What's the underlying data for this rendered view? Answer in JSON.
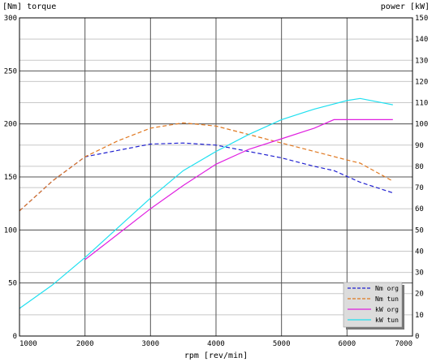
{
  "chart_data": {
    "type": "line",
    "ylabel_left": "[Nm] torque",
    "ylabel_right": "power [kW]",
    "xlabel": "rpm [rev/min]",
    "xlim": [
      1000,
      7000
    ],
    "ylim_left": [
      0,
      300
    ],
    "ylim_right": [
      0,
      150
    ],
    "x_ticks": [
      "1000",
      "2000",
      "3000",
      "4000",
      "5000",
      "6000",
      "7000"
    ],
    "y_left_ticks": [
      "0",
      "50",
      "100",
      "150",
      "200",
      "250",
      "300"
    ],
    "y_right_ticks": [
      "0",
      "10",
      "20",
      "30",
      "40",
      "50",
      "60",
      "70",
      "80",
      "90",
      "100",
      "110",
      "120",
      "130",
      "140",
      "150"
    ],
    "grid": true,
    "legend_position": "bottom-right",
    "series": [
      {
        "name": "Nm org",
        "axis": "left",
        "color": "#2020d0",
        "dash": "dashed",
        "x": [
          1000,
          1500,
          2000,
          2500,
          3000,
          3500,
          4000,
          4500,
          5000,
          5500,
          5800,
          6200,
          6700
        ],
        "y": [
          118,
          146,
          169,
          175,
          181,
          182,
          180,
          174,
          168,
          160,
          156,
          145,
          135
        ]
      },
      {
        "name": "Nm tun",
        "axis": "left",
        "color": "#e07820",
        "dash": "dashed",
        "x": [
          1000,
          1500,
          2000,
          2500,
          3000,
          3500,
          4000,
          4500,
          5000,
          5500,
          6000,
          6200,
          6700
        ],
        "y": [
          118,
          146,
          169,
          184,
          196,
          201,
          198,
          190,
          182,
          174,
          166,
          163,
          146
        ]
      },
      {
        "name": "kW org",
        "axis": "right",
        "color": "#e020e0",
        "dash": "solid",
        "x": [
          2000,
          2500,
          3000,
          3500,
          4000,
          4500,
          5000,
          5500,
          5800,
          6200,
          6700
        ],
        "y": [
          36,
          48,
          60,
          71,
          81,
          88,
          93,
          98,
          102,
          102,
          102
        ]
      },
      {
        "name": "kW tun",
        "axis": "right",
        "color": "#20e0f0",
        "dash": "solid",
        "x": [
          1000,
          1500,
          2000,
          2500,
          3000,
          3500,
          4000,
          4500,
          5000,
          5500,
          6000,
          6200,
          6700
        ],
        "y": [
          13,
          24,
          37,
          51,
          65,
          78,
          87,
          95,
          102,
          107,
          111,
          112,
          109
        ]
      }
    ]
  }
}
